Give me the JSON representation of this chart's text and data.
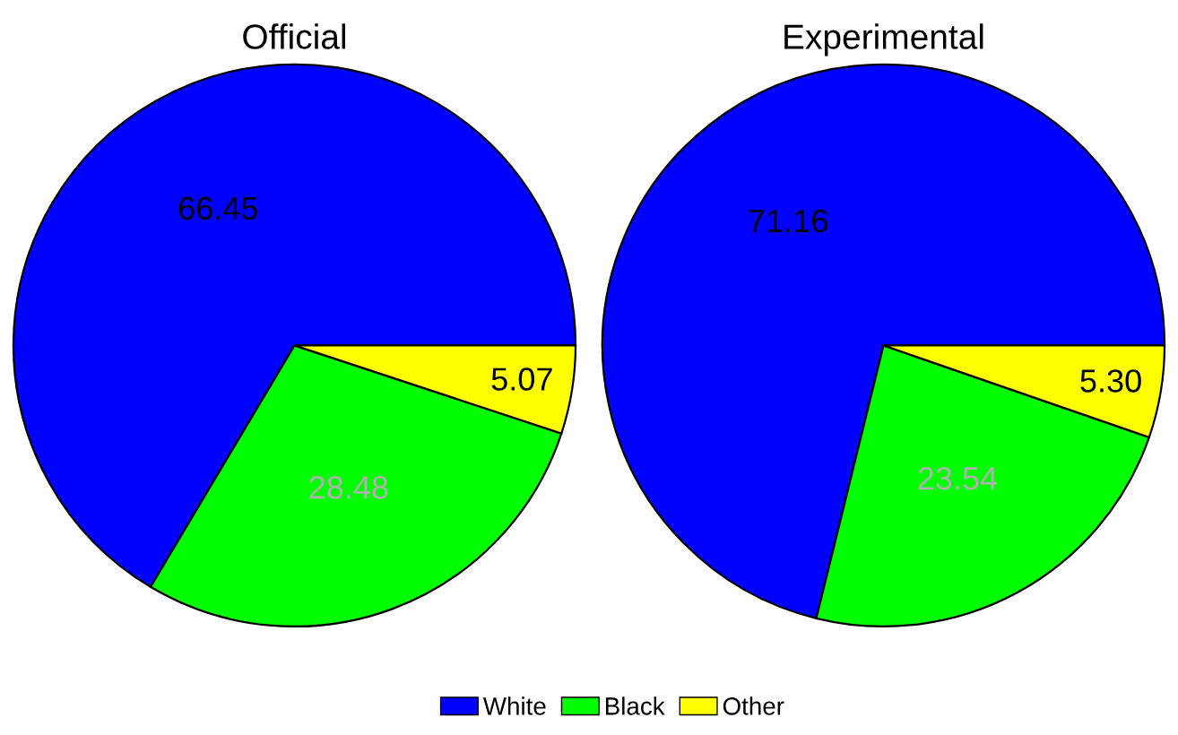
{
  "chart_data": [
    {
      "type": "pie",
      "title": "Official",
      "categories": [
        "White",
        "Black",
        "Other"
      ],
      "values": [
        66.45,
        28.48,
        5.07
      ],
      "value_labels": [
        "66.45",
        "28.48",
        "5.07"
      ],
      "colors": [
        "#0000ff",
        "#00ff00",
        "#ffff00"
      ],
      "legend": "bottom"
    },
    {
      "type": "pie",
      "title": "Experimental",
      "categories": [
        null,
        null,
        null
      ],
      "values": [
        71.16,
        23.54,
        5.3
      ],
      "value_labels": [
        "71.16",
        "23.54",
        "5.30"
      ],
      "colors": [
        "#0000ff",
        "#00ff00",
        "#ffff00"
      ]
    }
  ]
}
